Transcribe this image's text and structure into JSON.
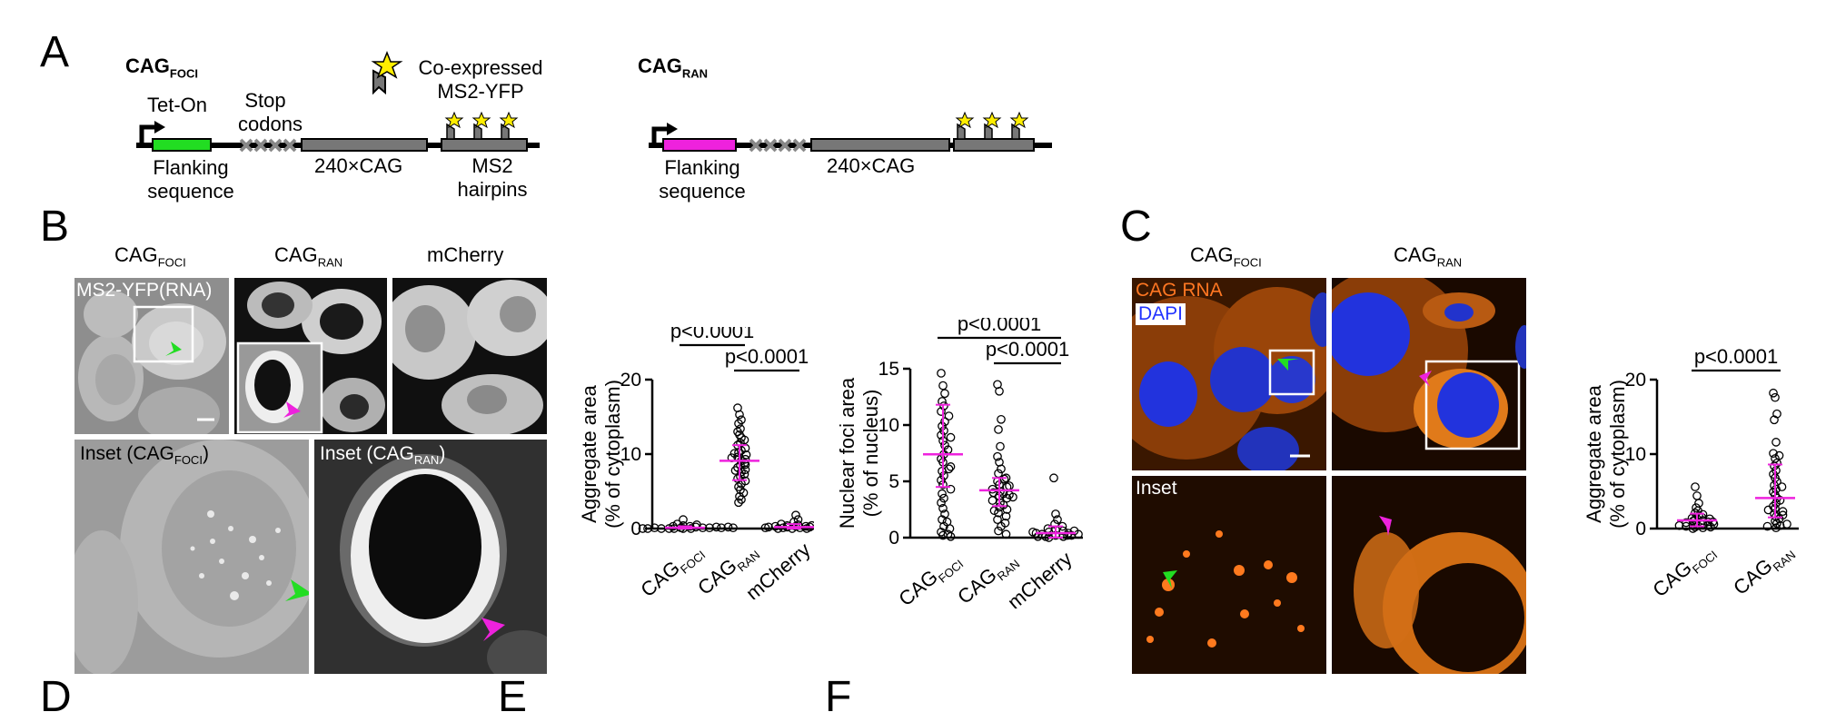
{
  "panels": {
    "A": "A",
    "B": "B",
    "C": "C",
    "D": "D",
    "E": "E",
    "F": "F"
  },
  "panel_a": {
    "foci_title": "CAG",
    "foci_title_sub": "FOCI",
    "ran_title": "CAG",
    "ran_title_sub": "RAN",
    "tet_on": "Tet-On",
    "stop_codons": [
      "Stop",
      "codons"
    ],
    "coexpressed": [
      "Co-expressed",
      "MS2-YFP"
    ],
    "flanking": [
      "Flanking",
      "sequence"
    ],
    "cag_repeat": "240×CAG",
    "ms2": [
      "MS2",
      "hairpins"
    ],
    "colors": {
      "flank_foci": "#22dd22",
      "flank_ran": "#ee22dd",
      "box": "#777777",
      "star": "#ffee00"
    }
  },
  "panel_b": {
    "col_headers": [
      {
        "main": "CAG",
        "sub": "FOCI"
      },
      {
        "main": "CAG",
        "sub": "RAN"
      },
      {
        "main": "mCherry",
        "sub": ""
      }
    ],
    "overlay_label": "MS2-YFP(RNA)",
    "inset_foci": {
      "pre": "Inset (CAG",
      "sub": "FOCI",
      "post": ")"
    },
    "inset_ran": {
      "pre": "Inset (CAG",
      "sub": "RAN",
      "post": ")"
    }
  },
  "panel_c": {
    "col_headers": [
      {
        "main": "CAG",
        "sub": "FOCI"
      },
      {
        "main": "CAG",
        "sub": "RAN"
      }
    ],
    "legend_rna": "CAG RNA",
    "legend_dapi": "DAPI",
    "inset": "Inset",
    "colors": {
      "rna": "#ff7722",
      "dapi": "#2233ff"
    }
  },
  "chart_data": [
    {
      "type": "scatter",
      "id": "B-aggregate",
      "ylabel": [
        "Aggregate area",
        "(% of cytoplasm)"
      ],
      "ylim": [
        0,
        20
      ],
      "yticks": [
        0,
        10,
        20
      ],
      "categories": [
        {
          "main": "CAG",
          "sub": "FOCI"
        },
        {
          "main": "CAG",
          "sub": "RAN"
        },
        {
          "main": "mCherry",
          "sub": ""
        }
      ],
      "medians": [
        0.1,
        9.1,
        0.2
      ],
      "error": [
        [
          0,
          0.3
        ],
        [
          6.5,
          11.2
        ],
        [
          0,
          0.6
        ]
      ],
      "comparisons": [
        {
          "from": 0,
          "to": 1,
          "label": "p<0.0001"
        },
        {
          "from": 1,
          "to": 2,
          "label": "p<0.0001"
        }
      ],
      "series": [
        {
          "values": [
            0,
            0,
            0.1,
            0.2,
            0,
            0.4,
            0.1,
            0,
            0.3,
            0.1,
            0.6,
            0,
            0.2,
            0.1,
            0.1,
            0,
            0.5,
            0.2,
            0,
            0.1,
            1.2,
            0.3
          ]
        },
        {
          "values": [
            16.2,
            15.3,
            14.6,
            14.1,
            13.4,
            13.0,
            12.6,
            12.2,
            11.9,
            11.5,
            11.2,
            10.8,
            10.5,
            10.2,
            9.9,
            9.6,
            9.3,
            9.1,
            8.8,
            8.5,
            8.2,
            7.9,
            7.6,
            7.3,
            7.0,
            6.7,
            6.4,
            6.0,
            5.6,
            5.2,
            4.8,
            4.3,
            3.9,
            3.5,
            10.1,
            9.5,
            8.6,
            7.8
          ]
        },
        {
          "values": [
            0,
            0.1,
            0.3,
            0.2,
            0,
            0.5,
            0.9,
            1.8,
            0.4,
            0.1,
            0.2,
            0.3,
            0,
            0.6,
            0.1,
            0.2,
            0.4,
            0,
            0.3,
            0.1,
            1.2,
            0.2
          ]
        }
      ]
    },
    {
      "type": "scatter",
      "id": "B-nuclear",
      "ylabel": [
        "Nuclear foci area",
        "(% of nucleus)"
      ],
      "ylim": [
        0,
        15
      ],
      "yticks": [
        0,
        5,
        10,
        15
      ],
      "categories": [
        {
          "main": "CAG",
          "sub": "FOCI"
        },
        {
          "main": "CAG",
          "sub": "RAN"
        },
        {
          "main": "mCherry",
          "sub": ""
        }
      ],
      "medians": [
        7.4,
        4.2,
        0.4
      ],
      "error": [
        [
          4.5,
          11.8
        ],
        [
          2.8,
          5.3
        ],
        [
          0,
          1.0
        ]
      ],
      "comparisons": [
        {
          "from": 0,
          "to": 2,
          "label": "p<0.0001"
        },
        {
          "from": 1,
          "to": 2,
          "label": "p<0.0001"
        }
      ],
      "series": [
        {
          "values": [
            14.6,
            13.5,
            12.8,
            12.1,
            11.7,
            11.2,
            10.8,
            10.3,
            9.9,
            9.5,
            9.1,
            8.6,
            8.2,
            7.8,
            7.4,
            7.0,
            6.7,
            6.3,
            5.9,
            5.5,
            5.1,
            4.7,
            4.3,
            3.9,
            3.5,
            3.1,
            2.6,
            2.1,
            1.6,
            1.0,
            0.5,
            0.2,
            0.1,
            0.3,
            0.8,
            1.4,
            6.1,
            8.9
          ]
        },
        {
          "values": [
            13.6,
            13.0,
            10.5,
            9.6,
            8.1,
            7.2,
            6.7,
            6.1,
            5.7,
            5.3,
            5.0,
            4.7,
            4.5,
            4.3,
            4.1,
            3.9,
            3.7,
            3.5,
            3.3,
            3.1,
            2.9,
            2.7,
            2.5,
            2.2,
            1.9,
            1.6,
            1.3,
            1.0,
            0.6,
            0.3,
            4.6,
            4.0,
            3.6,
            5.2,
            2.4,
            3.8
          ]
        },
        {
          "values": [
            5.3,
            2.1,
            1.6,
            1.2,
            1.0,
            0.8,
            0.7,
            0.6,
            0.5,
            0.4,
            0.3,
            0.2,
            0.1,
            0,
            0.6,
            0.4,
            0.2,
            0.1,
            0.3,
            0.5,
            0.2,
            0.1
          ]
        }
      ]
    },
    {
      "type": "scatter",
      "id": "C-aggregate",
      "ylabel": [
        "Aggregate area",
        "(% of cytoplasm)"
      ],
      "ylim": [
        0,
        20
      ],
      "yticks": [
        0,
        10,
        20
      ],
      "categories": [
        {
          "main": "CAG",
          "sub": "FOCI"
        },
        {
          "main": "CAG",
          "sub": "RAN"
        }
      ],
      "medians": [
        1.1,
        4.1
      ],
      "error": [
        [
          0.3,
          2.0
        ],
        [
          1.5,
          8.6
        ]
      ],
      "comparisons": [
        {
          "from": 0,
          "to": 1,
          "label": "p<0.0001"
        }
      ],
      "series": [
        {
          "values": [
            5.6,
            4.4,
            3.4,
            2.8,
            2.4,
            2.1,
            1.9,
            1.7,
            1.5,
            1.4,
            1.2,
            1.1,
            1.0,
            0.9,
            0.8,
            0.7,
            0.6,
            0.5,
            0.4,
            0.3,
            0.2,
            0.1,
            0,
            0.6,
            1.3,
            0.9,
            0.4,
            0.2
          ]
        },
        {
          "values": [
            18.2,
            17.6,
            15.4,
            14.6,
            11.6,
            10.1,
            9.4,
            8.8,
            8.4,
            7.8,
            7.3,
            6.8,
            6.3,
            5.8,
            5.3,
            4.9,
            4.5,
            4.1,
            3.8,
            3.4,
            3.0,
            2.7,
            2.3,
            2.0,
            1.6,
            1.3,
            1.0,
            0.7,
            0.4,
            0.1,
            0.3,
            0.6,
            1.8,
            2.5,
            5.6,
            9.8
          ]
        }
      ]
    }
  ]
}
